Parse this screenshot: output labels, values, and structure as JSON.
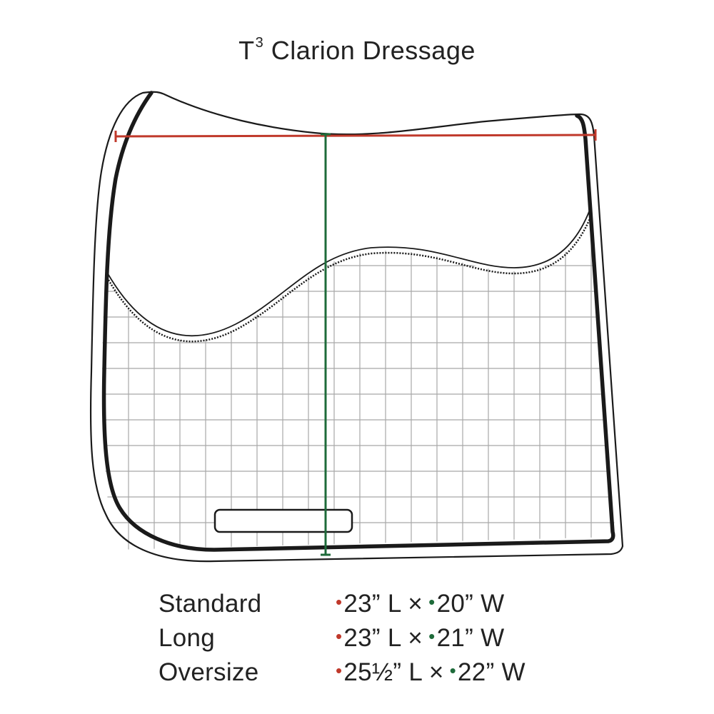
{
  "title": {
    "main": "T",
    "superscript": "3",
    "rest": " Clarion Dressage"
  },
  "colors": {
    "length_marker": "#c0392b",
    "width_marker": "#1e6b3a",
    "outline": "#1a1a1a",
    "grid": "#a8a8a8"
  },
  "sizes": [
    {
      "name": "Standard",
      "length": "23” L ×",
      "width": "20” W"
    },
    {
      "name": "Long",
      "length": "23” L ×",
      "width": "21” W"
    },
    {
      "name": "Oversize",
      "length": "25½” L ×",
      "width": "22” W"
    }
  ],
  "bullet": "•"
}
